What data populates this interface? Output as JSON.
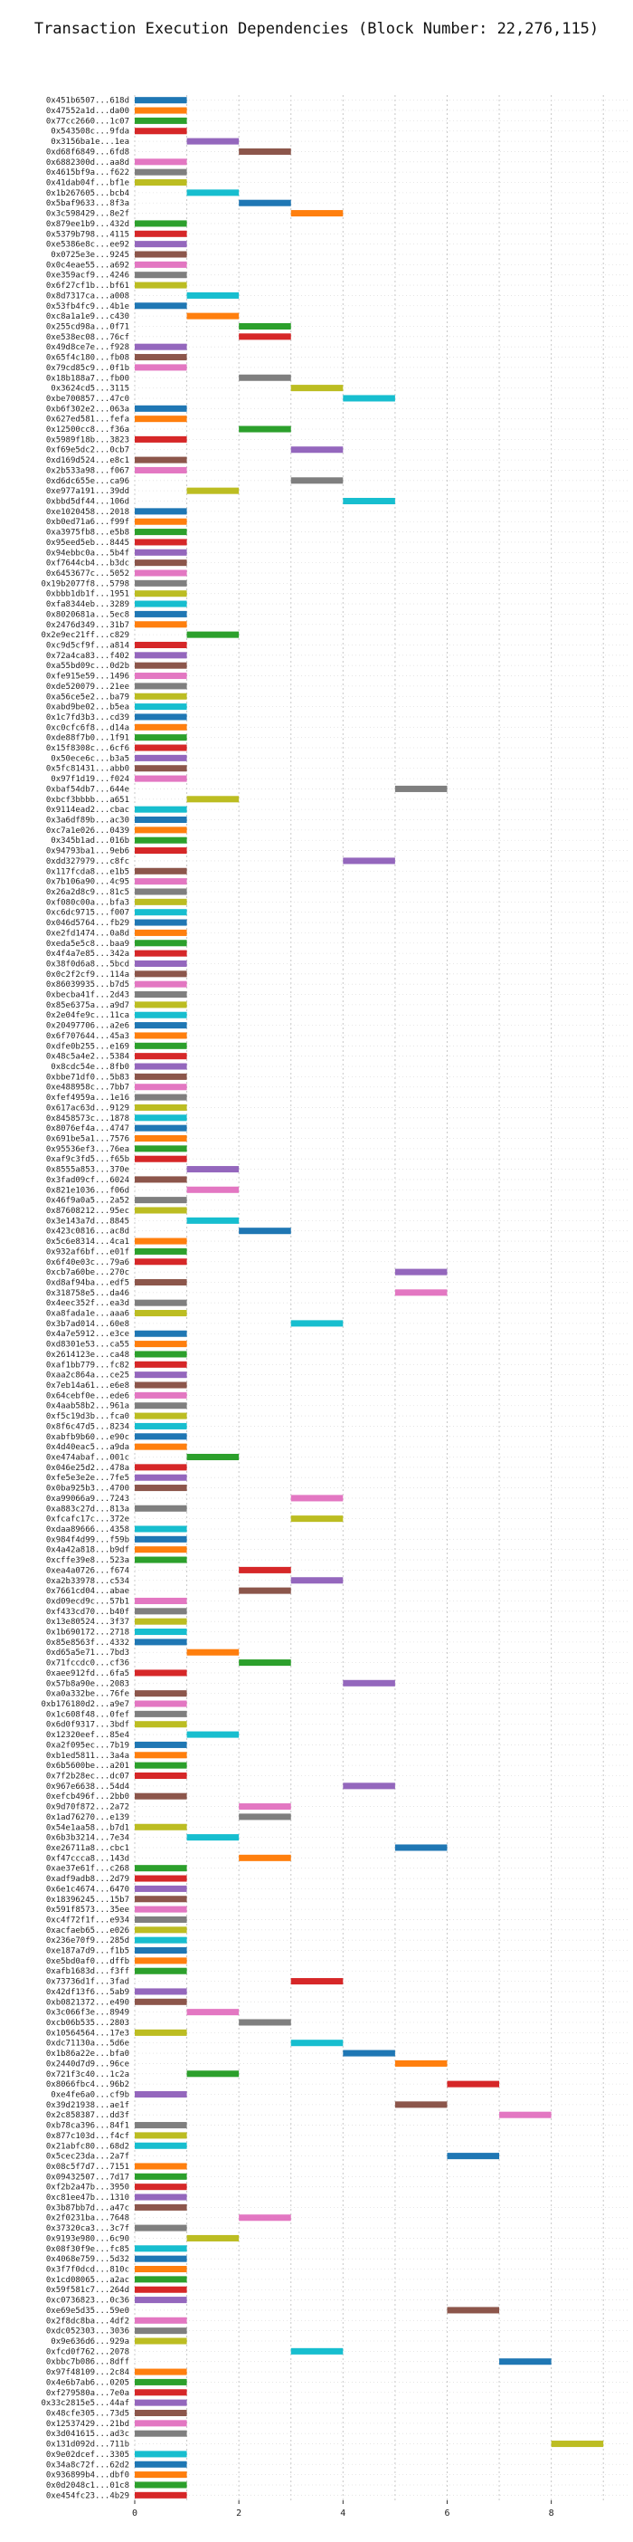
{
  "chart_data": {
    "type": "bar",
    "orientation": "horizontal-gantt",
    "title": "Transaction Execution Dependencies (Block Number: 22,276,115)",
    "xlabel": "",
    "ylabel": "",
    "xlim": [
      0,
      9.5
    ],
    "xticks": [
      0,
      2,
      4,
      6,
      8
    ],
    "grid": "vertical dotted",
    "colors": [
      "#1f77b4",
      "#ff7f0e",
      "#2ca02c",
      "#d62728",
      "#9467bd",
      "#8c564b",
      "#e377c2",
      "#7f7f7f",
      "#bcbd22",
      "#17becf"
    ],
    "transactions": [
      {
        "label": "0x451b6507...618d",
        "start": 0
      },
      {
        "label": "0x47552a1d...da00",
        "start": 0
      },
      {
        "label": "0x77cc2660...1c07",
        "start": 0
      },
      {
        "label": "0x543508c...9fda",
        "start": 0
      },
      {
        "label": "0x3156ba1e...1ea",
        "start": 1
      },
      {
        "label": "0xd68f6849...6fd8",
        "start": 2
      },
      {
        "label": "0x6882300d...aa8d",
        "start": 0
      },
      {
        "label": "0x4615bf9a...f622",
        "start": 0
      },
      {
        "label": "0x41dab04f...bf1e",
        "start": 0
      },
      {
        "label": "0x1b267605...bcb4",
        "start": 1
      },
      {
        "label": "0x5baf9633...8f3a",
        "start": 2
      },
      {
        "label": "0x3c598429...8e2f",
        "start": 3
      },
      {
        "label": "0x879ee1b9...432d",
        "start": 0
      },
      {
        "label": "0x5379b798...4115",
        "start": 0
      },
      {
        "label": "0xe5386e8c...ee92",
        "start": 0
      },
      {
        "label": "0x0725e3e...9245",
        "start": 0
      },
      {
        "label": "0x0c4eae55...a692",
        "start": 0
      },
      {
        "label": "0xe359acf9...4246",
        "start": 0
      },
      {
        "label": "0x6f27cf1b...bf61",
        "start": 0
      },
      {
        "label": "0x8d7317ca...a008",
        "start": 1
      },
      {
        "label": "0x53fb4fc9...4b1e",
        "start": 0
      },
      {
        "label": "0xc8a1a1e9...c430",
        "start": 1
      },
      {
        "label": "0x255cd98a...0f71",
        "start": 2
      },
      {
        "label": "0xe538ec08...76cf",
        "start": 2
      },
      {
        "label": "0x49d8ce7e...f928",
        "start": 0
      },
      {
        "label": "0x65f4c180...fb08",
        "start": 0
      },
      {
        "label": "0x79cd85c9...0f1b",
        "start": 0
      },
      {
        "label": "0x18b188a7...fb00",
        "start": 2
      },
      {
        "label": "0x3624cd5...3115",
        "start": 3
      },
      {
        "label": "0xbe700857...47c0",
        "start": 4
      },
      {
        "label": "0xb6f302e2...063a",
        "start": 0
      },
      {
        "label": "0x627ed581...fefa",
        "start": 0
      },
      {
        "label": "0x12500cc8...f36a",
        "start": 2
      },
      {
        "label": "0x5989f18b...3823",
        "start": 0
      },
      {
        "label": "0xf69e5dc2...0cb7",
        "start": 3
      },
      {
        "label": "0xd169d524...e8c1",
        "start": 0
      },
      {
        "label": "0x2b533a98...f067",
        "start": 0
      },
      {
        "label": "0xd6dc655e...ca96",
        "start": 3
      },
      {
        "label": "0xe977a191...39dd",
        "start": 1
      },
      {
        "label": "0xbbd5df44...106d",
        "start": 4
      },
      {
        "label": "0xe1020458...2018",
        "start": 0
      },
      {
        "label": "0xb0ed71a6...f99f",
        "start": 0
      },
      {
        "label": "0xa3975fb8...e5b8",
        "start": 0
      },
      {
        "label": "0x95eed5eb...8445",
        "start": 0
      },
      {
        "label": "0x94ebbc0a...5b4f",
        "start": 0
      },
      {
        "label": "0xf7644cb4...b3dc",
        "start": 0
      },
      {
        "label": "0x6453677c...5052",
        "start": 0
      },
      {
        "label": "0x19b2077f8...5798",
        "start": 0
      },
      {
        "label": "0xbbb1db1f...1951",
        "start": 0
      },
      {
        "label": "0xfa8344eb...3289",
        "start": 0
      },
      {
        "label": "0x8020681a...5ec8",
        "start": 0
      },
      {
        "label": "0x2476d349...31b7",
        "start": 0
      },
      {
        "label": "0x2e9ec21ff...c829",
        "start": 1
      },
      {
        "label": "0xc9d5cf9f...a814",
        "start": 0
      },
      {
        "label": "0x72a4ca83...f402",
        "start": 0
      },
      {
        "label": "0xa55bd09c...0d2b",
        "start": 0
      },
      {
        "label": "0xfe915e59...1496",
        "start": 0
      },
      {
        "label": "0xde520079...21ee",
        "start": 0
      },
      {
        "label": "0xa56ce5e2...ba79",
        "start": 0
      },
      {
        "label": "0xabd9be02...b5ea",
        "start": 0
      },
      {
        "label": "0x1c7fd3b3...cd39",
        "start": 0
      },
      {
        "label": "0xc0cfc6f8...d14a",
        "start": 0
      },
      {
        "label": "0xde88f7b0...1f91",
        "start": 0
      },
      {
        "label": "0x15f8308c...6cf6",
        "start": 0
      },
      {
        "label": "0x50ece6c...b3a5",
        "start": 0
      },
      {
        "label": "0x5fc81431...abb0",
        "start": 0
      },
      {
        "label": "0x97f1d19...f024",
        "start": 0
      },
      {
        "label": "0xbaf54db7...644e",
        "start": 5
      },
      {
        "label": "0xbcf3bbbb...a651",
        "start": 1
      },
      {
        "label": "0x9114ead2...cbac",
        "start": 0
      },
      {
        "label": "0x3a6df89b...ac30",
        "start": 0
      },
      {
        "label": "0xc7a1e026...0439",
        "start": 0
      },
      {
        "label": "0x345b1ad...016b",
        "start": 0
      },
      {
        "label": "0x94793ba1...9eb6",
        "start": 0
      },
      {
        "label": "0xdd327979...c8fc",
        "start": 4
      },
      {
        "label": "0x117fcda8...e1b5",
        "start": 0
      },
      {
        "label": "0x7b106a90...4c95",
        "start": 0
      },
      {
        "label": "0x26a2d8c9...81c5",
        "start": 0
      },
      {
        "label": "0xf080c00a...bfa3",
        "start": 0
      },
      {
        "label": "0xc6dc9715...f007",
        "start": 0
      },
      {
        "label": "0x046d5764...fb29",
        "start": 0
      },
      {
        "label": "0xe2fd1474...0a8d",
        "start": 0
      },
      {
        "label": "0xeda5e5c8...baa9",
        "start": 0
      },
      {
        "label": "0x4f4a7e85...342a",
        "start": 0
      },
      {
        "label": "0x38f0d6a8...5bcd",
        "start": 0
      },
      {
        "label": "0x0c2f2cf9...114a",
        "start": 0
      },
      {
        "label": "0x86039935...b7d5",
        "start": 0
      },
      {
        "label": "0xbecba41f...2d43",
        "start": 0
      },
      {
        "label": "0x85e6375a...a9d7",
        "start": 0
      },
      {
        "label": "0x2e04fe9c...11ca",
        "start": 0
      },
      {
        "label": "0x20497706...a2e6",
        "start": 0
      },
      {
        "label": "0x6f707644...45a3",
        "start": 0
      },
      {
        "label": "0xdfe0b255...e169",
        "start": 0
      },
      {
        "label": "0x48c5a4e2...5384",
        "start": 0
      },
      {
        "label": "0x8cdc54e...8fb0",
        "start": 0
      },
      {
        "label": "0xbbe71df0...5b83",
        "start": 0
      },
      {
        "label": "0xe488958c...7bb7",
        "start": 0
      },
      {
        "label": "0xfef4959a...1e16",
        "start": 0
      },
      {
        "label": "0x617ac63d...9129",
        "start": 0
      },
      {
        "label": "0x8458573c...1878",
        "start": 0
      },
      {
        "label": "0x8076ef4a...4747",
        "start": 0
      },
      {
        "label": "0x691be5a1...7576",
        "start": 0
      },
      {
        "label": "0x95536ef3...76ea",
        "start": 0
      },
      {
        "label": "0xaf9c3fd5...f65b",
        "start": 0
      },
      {
        "label": "0x8555a853...370e",
        "start": 1
      },
      {
        "label": "0x3fad09cf...6024",
        "start": 0
      },
      {
        "label": "0x821e1036...f06d",
        "start": 1
      },
      {
        "label": "0x46f9a0a5...2a52",
        "start": 0
      },
      {
        "label": "0x87608212...95ec",
        "start": 0
      },
      {
        "label": "0x3e143a7d...8845",
        "start": 1
      },
      {
        "label": "0x423c0816...ac8d",
        "start": 2
      },
      {
        "label": "0x5c6e8314...4ca1",
        "start": 0
      },
      {
        "label": "0x932af6bf...e01f",
        "start": 0
      },
      {
        "label": "0x6f40e03c...79a6",
        "start": 0
      },
      {
        "label": "0xcb7a60be...270c",
        "start": 5
      },
      {
        "label": "0xd8af94ba...edf5",
        "start": 0
      },
      {
        "label": "0x318758e5...da46",
        "start": 5
      },
      {
        "label": "0x4eec352f...ea3d",
        "start": 0
      },
      {
        "label": "0xa8fada1e...aaa6",
        "start": 0
      },
      {
        "label": "0x3b7ad014...60e8",
        "start": 3
      },
      {
        "label": "0x4a7e5912...e3ce",
        "start": 0
      },
      {
        "label": "0xd8301e53...ca55",
        "start": 0
      },
      {
        "label": "0x2614123e...ca48",
        "start": 0
      },
      {
        "label": "0xaf1bb779...fc82",
        "start": 0
      },
      {
        "label": "0xaa2c864a...ce25",
        "start": 0
      },
      {
        "label": "0x7eb14a61...e6e8",
        "start": 0
      },
      {
        "label": "0x64cebf0e...ede6",
        "start": 0
      },
      {
        "label": "0x4aab58b2...961a",
        "start": 0
      },
      {
        "label": "0xf5c19d3b...fca0",
        "start": 0
      },
      {
        "label": "0x8f6c47d5...8234",
        "start": 0
      },
      {
        "label": "0xabfb9b60...e90c",
        "start": 0
      },
      {
        "label": "0x4d40eac5...a9da",
        "start": 0
      },
      {
        "label": "0xe474abaf...001c",
        "start": 1
      },
      {
        "label": "0x046e25d2...478a",
        "start": 0
      },
      {
        "label": "0xfe5e3e2e...7fe5",
        "start": 0
      },
      {
        "label": "0x0ba925b3...4700",
        "start": 0
      },
      {
        "label": "0xa99066a9...7243",
        "start": 3
      },
      {
        "label": "0xa883c27d...813a",
        "start": 0
      },
      {
        "label": "0xfcafc17c...372e",
        "start": 3
      },
      {
        "label": "0xdaa89666...4358",
        "start": 0
      },
      {
        "label": "0x984f4d99...f59b",
        "start": 0
      },
      {
        "label": "0x4a42a818...b9df",
        "start": 0
      },
      {
        "label": "0xcffe39e8...523a",
        "start": 0
      },
      {
        "label": "0xea4a0726...f674",
        "start": 2
      },
      {
        "label": "0xa2b33978...c534",
        "start": 3
      },
      {
        "label": "0x7661cd04...abae",
        "start": 2
      },
      {
        "label": "0xd09ecd9c...57b1",
        "start": 0
      },
      {
        "label": "0xf433cd70...b40f",
        "start": 0
      },
      {
        "label": "0x13e80524...3f37",
        "start": 0
      },
      {
        "label": "0x1b690172...2718",
        "start": 0
      },
      {
        "label": "0x85e8563f...4332",
        "start": 0
      },
      {
        "label": "0xd65a5e71...7bd3",
        "start": 1
      },
      {
        "label": "0x71fccdc0...cf36",
        "start": 2
      },
      {
        "label": "0xaee912fd...6fa5",
        "start": 0
      },
      {
        "label": "0x57b8a90e...2083",
        "start": 4
      },
      {
        "label": "0xa0a332be...76fe",
        "start": 0
      },
      {
        "label": "0xb176180d2...a9e7",
        "start": 0
      },
      {
        "label": "0x1c608f48...0fef",
        "start": 0
      },
      {
        "label": "0x6d0f9317...3bdf",
        "start": 0
      },
      {
        "label": "0x12320eef...85e4",
        "start": 1
      },
      {
        "label": "0xa2f095ec...7b19",
        "start": 0
      },
      {
        "label": "0xb1ed5811...3a4a",
        "start": 0
      },
      {
        "label": "0x6b5600be...a201",
        "start": 0
      },
      {
        "label": "0x7f2b28ec...dc07",
        "start": 0
      },
      {
        "label": "0x967e6638...54d4",
        "start": 4
      },
      {
        "label": "0xefcb496f...2bb0",
        "start": 0
      },
      {
        "label": "0x9d70f872...2a72",
        "start": 2
      },
      {
        "label": "0x1ad76270...e139",
        "start": 2
      },
      {
        "label": "0x54e1aa58...b7d1",
        "start": 0
      },
      {
        "label": "0x6b3b3214...7e34",
        "start": 1
      },
      {
        "label": "0xe26711a8...cbc1",
        "start": 5
      },
      {
        "label": "0xf47ccca8...143d",
        "start": 2
      },
      {
        "label": "0xae37e61f...c268",
        "start": 0
      },
      {
        "label": "0xadf9adb8...2d79",
        "start": 0
      },
      {
        "label": "0x6e1c4674...6470",
        "start": 0
      },
      {
        "label": "0x18396245...15b7",
        "start": 0
      },
      {
        "label": "0x591f8573...35ee",
        "start": 0
      },
      {
        "label": "0xc4f72f1f...e934",
        "start": 0
      },
      {
        "label": "0xacfaeb65...e026",
        "start": 0
      },
      {
        "label": "0x236e70f9...285d",
        "start": 0
      },
      {
        "label": "0xe187a7d9...f1b5",
        "start": 0
      },
      {
        "label": "0xe5bd0af0...dffb",
        "start": 0
      },
      {
        "label": "0xafb1683d...f3ff",
        "start": 0
      },
      {
        "label": "0x73736d1f...3fad",
        "start": 3
      },
      {
        "label": "0x42df13f6...5ab9",
        "start": 0
      },
      {
        "label": "0xb0821372...e490",
        "start": 0
      },
      {
        "label": "0x3c066f3e...8949",
        "start": 1
      },
      {
        "label": "0xcb06b535...2803",
        "start": 2
      },
      {
        "label": "0x10564564...17e3",
        "start": 0
      },
      {
        "label": "0xdc71130a...5d6e",
        "start": 3
      },
      {
        "label": "0x1b86a22e...bfa0",
        "start": 4
      },
      {
        "label": "0x2440d7d9...96ce",
        "start": 5
      },
      {
        "label": "0x721f3c40...1c2a",
        "start": 1
      },
      {
        "label": "0x8066fbc4...96b2",
        "start": 6
      },
      {
        "label": "0xe4fe6a0...cf9b",
        "start": 0
      },
      {
        "label": "0x39d21938...ae1f",
        "start": 5
      },
      {
        "label": "0x2c858387...dd3f",
        "start": 7
      },
      {
        "label": "0xb78ca396...84f1",
        "start": 0
      },
      {
        "label": "0x877c103d...f4cf",
        "start": 0
      },
      {
        "label": "0x21abfc80...68d2",
        "start": 0
      },
      {
        "label": "0x5cec23da...2a7f",
        "start": 6
      },
      {
        "label": "0x08c5f7d7...7151",
        "start": 0
      },
      {
        "label": "0x09432507...7d17",
        "start": 0
      },
      {
        "label": "0xf2b2a47b...3950",
        "start": 0
      },
      {
        "label": "0xc81ee47b...1310",
        "start": 0
      },
      {
        "label": "0x3b87bb7d...a47c",
        "start": 0
      },
      {
        "label": "0x2f0231ba...7648",
        "start": 2
      },
      {
        "label": "0x37320ca3...3c7f",
        "start": 0
      },
      {
        "label": "0x9193e980...6c90",
        "start": 1
      },
      {
        "label": "0x08f30f9e...fc85",
        "start": 0
      },
      {
        "label": "0x4068e759...5d32",
        "start": 0
      },
      {
        "label": "0x3f7f0dcd...810c",
        "start": 0
      },
      {
        "label": "0x1cd08065...a2ac",
        "start": 0
      },
      {
        "label": "0x59f581c7...264d",
        "start": 0
      },
      {
        "label": "0xc0736823...0c36",
        "start": 0
      },
      {
        "label": "0xe69e5d35...59e0",
        "start": 6
      },
      {
        "label": "0x2f8dc8ba...4df2",
        "start": 0
      },
      {
        "label": "0xdc052303...3036",
        "start": 0
      },
      {
        "label": "0x9e636d6...929a",
        "start": 0
      },
      {
        "label": "0xfcd0f762...2078",
        "start": 3
      },
      {
        "label": "0xbbc7b086...8dff",
        "start": 7
      },
      {
        "label": "0x97f48109...2c84",
        "start": 0
      },
      {
        "label": "0x4e6b7ab6...0205",
        "start": 0
      },
      {
        "label": "0xf279580a...7e0a",
        "start": 0
      },
      {
        "label": "0x33c2815e5...44af",
        "start": 0
      },
      {
        "label": "0x48cfe305...73d5",
        "start": 0
      },
      {
        "label": "0x12537429...21bd",
        "start": 0
      },
      {
        "label": "0x3d041615...ad3c",
        "start": 0
      },
      {
        "label": "0x131d092d...711b",
        "start": 8
      },
      {
        "label": "0x9e02dcef...3305",
        "start": 0
      },
      {
        "label": "0x34a8c72f...62d2",
        "start": 0
      },
      {
        "label": "0x936899b4...dbf0",
        "start": 0
      },
      {
        "label": "0x0d2048c1...01c8",
        "start": 0
      },
      {
        "label": "0xe454fc23...4b29",
        "start": 0
      }
    ]
  }
}
